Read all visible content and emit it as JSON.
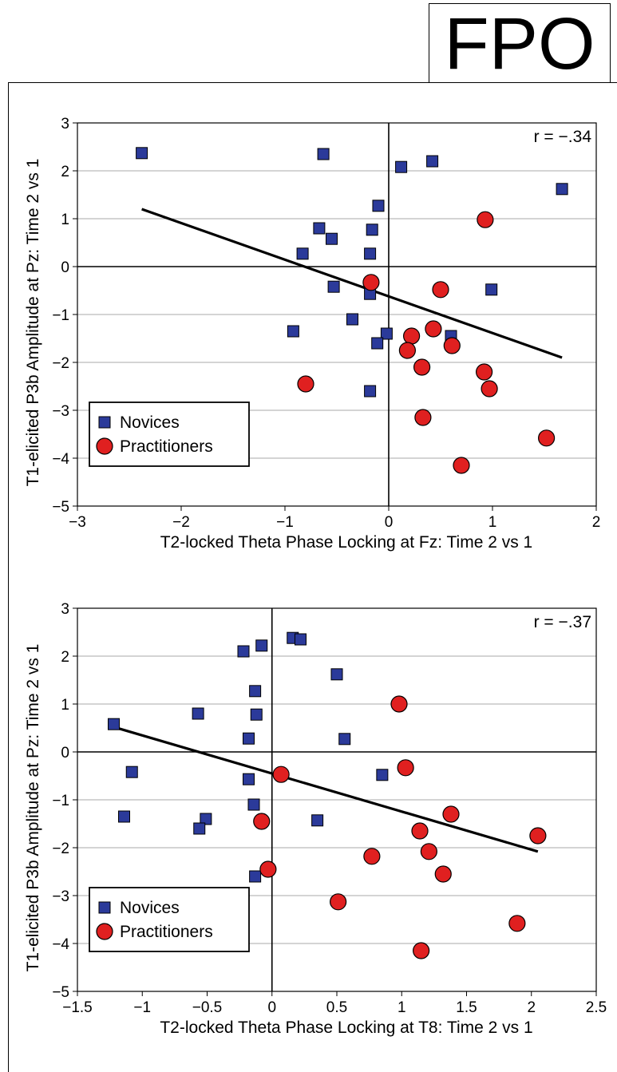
{
  "stamp": "FPO",
  "chart_data": [
    {
      "type": "scatter",
      "xlabel": "T2-locked Theta Phase Locking at Fz: Time 2 vs 1",
      "ylabel": "T1-elicited P3b Amplitude at Pz: Time 2 vs 1",
      "annotation": "r = −.34",
      "xlim": [
        -3,
        2
      ],
      "ylim": [
        -5,
        3
      ],
      "x_ticks": [
        -3,
        -2,
        -1,
        0,
        1,
        2
      ],
      "x_tick_labels": [
        "−3",
        "−2",
        "−1",
        "0",
        "1",
        "2"
      ],
      "y_ticks": [
        -5,
        -4,
        -3,
        -2,
        -1,
        0,
        1,
        2,
        3
      ],
      "y_tick_labels": [
        "−5",
        "−4",
        "−3",
        "−2",
        "−1",
        "0",
        "1",
        "2",
        "3"
      ],
      "grid": "horizontal",
      "legend_position": "bottom-left",
      "series": [
        {
          "name": "Novices",
          "marker": "square",
          "color": "#2b3a9a",
          "points": [
            [
              -2.38,
              2.37
            ],
            [
              -0.63,
              2.35
            ],
            [
              0.12,
              2.08
            ],
            [
              0.42,
              2.2
            ],
            [
              1.67,
              1.62
            ],
            [
              -0.1,
              1.27
            ],
            [
              -0.67,
              0.8
            ],
            [
              -0.55,
              0.58
            ],
            [
              -0.16,
              0.77
            ],
            [
              -0.83,
              0.27
            ],
            [
              -0.18,
              0.27
            ],
            [
              -0.53,
              -0.42
            ],
            [
              -0.18,
              -0.57
            ],
            [
              0.99,
              -0.48
            ],
            [
              -0.92,
              -1.35
            ],
            [
              -0.35,
              -1.1
            ],
            [
              -0.02,
              -1.4
            ],
            [
              -0.11,
              -1.6
            ],
            [
              0.6,
              -1.45
            ],
            [
              -0.18,
              -2.6
            ]
          ]
        },
        {
          "name": "Practitioners",
          "marker": "circle",
          "color": "#e02020",
          "points": [
            [
              0.93,
              0.98
            ],
            [
              -0.17,
              -0.33
            ],
            [
              0.5,
              -0.48
            ],
            [
              0.43,
              -1.3
            ],
            [
              0.22,
              -1.45
            ],
            [
              0.18,
              -1.75
            ],
            [
              0.61,
              -1.65
            ],
            [
              0.32,
              -2.1
            ],
            [
              0.92,
              -2.2
            ],
            [
              0.97,
              -2.55
            ],
            [
              -0.8,
              -2.45
            ],
            [
              0.33,
              -3.15
            ],
            [
              1.52,
              -3.58
            ],
            [
              0.7,
              -4.15
            ]
          ]
        }
      ],
      "regression_line": [
        [
          -2.38,
          1.2
        ],
        [
          1.67,
          -1.9
        ]
      ]
    },
    {
      "type": "scatter",
      "xlabel": "T2-locked Theta Phase Locking at T8: Time 2 vs 1",
      "ylabel": "T1-elicited P3b Amplitude at Pz: Time 2 vs 1",
      "annotation": "r = −.37",
      "xlim": [
        -1.5,
        2.5
      ],
      "ylim": [
        -5,
        3
      ],
      "x_ticks": [
        -1.5,
        -1,
        -0.5,
        0,
        0.5,
        1,
        1.5,
        2,
        2.5
      ],
      "x_tick_labels": [
        "−1.5",
        "−1",
        "−0.5",
        "0",
        "0.5",
        "1",
        "1.5",
        "2",
        "2.5"
      ],
      "y_ticks": [
        -5,
        -4,
        -3,
        -2,
        -1,
        0,
        1,
        2,
        3
      ],
      "y_tick_labels": [
        "−5",
        "−4",
        "−3",
        "−2",
        "−1",
        "0",
        "1",
        "2",
        "3"
      ],
      "grid": "horizontal",
      "legend_position": "bottom-left",
      "series": [
        {
          "name": "Novices",
          "marker": "square",
          "color": "#2b3a9a",
          "points": [
            [
              0.16,
              2.38
            ],
            [
              0.22,
              2.35
            ],
            [
              -0.08,
              2.22
            ],
            [
              -0.22,
              2.1
            ],
            [
              0.5,
              1.62
            ],
            [
              -0.13,
              1.27
            ],
            [
              -0.57,
              0.8
            ],
            [
              -0.12,
              0.78
            ],
            [
              -1.22,
              0.58
            ],
            [
              -0.18,
              0.28
            ],
            [
              0.56,
              0.27
            ],
            [
              -1.08,
              -0.42
            ],
            [
              0.85,
              -0.48
            ],
            [
              -0.18,
              -0.57
            ],
            [
              -0.14,
              -1.1
            ],
            [
              -1.14,
              -1.35
            ],
            [
              -0.51,
              -1.4
            ],
            [
              0.35,
              -1.43
            ],
            [
              -0.56,
              -1.6
            ],
            [
              -0.13,
              -2.6
            ]
          ]
        },
        {
          "name": "Practitioners",
          "marker": "circle",
          "color": "#e02020",
          "points": [
            [
              0.98,
              1.0
            ],
            [
              1.03,
              -0.33
            ],
            [
              0.07,
              -0.47
            ],
            [
              1.38,
              -1.3
            ],
            [
              -0.08,
              -1.45
            ],
            [
              1.14,
              -1.65
            ],
            [
              2.05,
              -1.75
            ],
            [
              1.21,
              -2.08
            ],
            [
              0.77,
              -2.18
            ],
            [
              1.32,
              -2.55
            ],
            [
              -0.03,
              -2.45
            ],
            [
              0.51,
              -3.13
            ],
            [
              1.89,
              -3.58
            ],
            [
              1.15,
              -4.15
            ]
          ]
        }
      ],
      "regression_line": [
        [
          -1.22,
          0.52
        ],
        [
          2.05,
          -2.08
        ]
      ]
    }
  ]
}
